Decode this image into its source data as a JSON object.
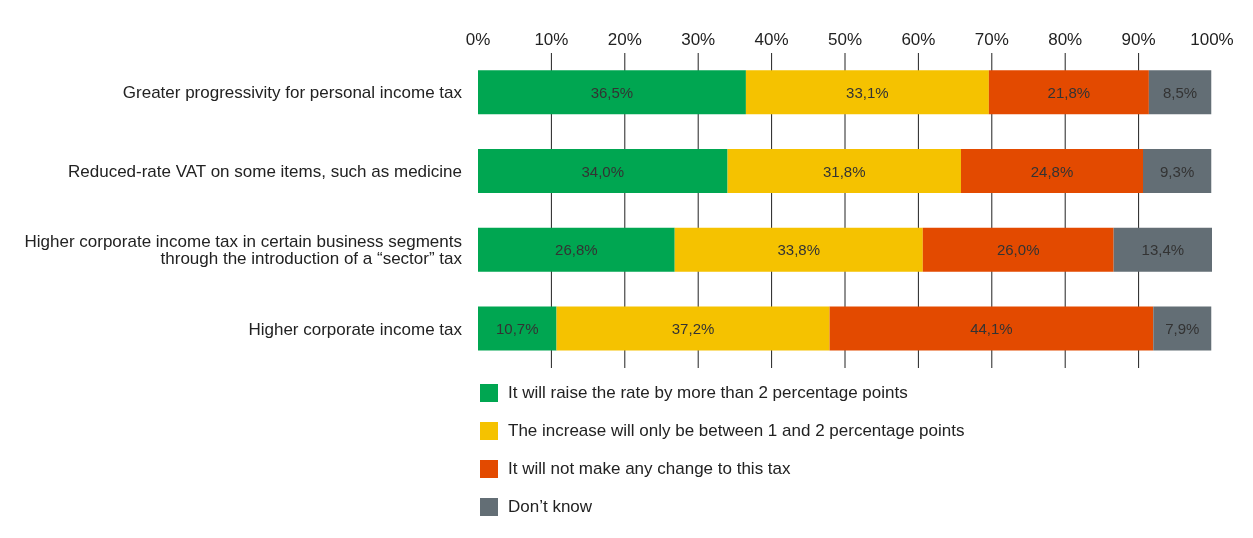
{
  "chart_data": {
    "type": "bar",
    "orientation": "horizontal",
    "stacked": true,
    "categories": [
      "Greater progressivity for personal income tax",
      "Reduced-rate VAT on some items, such as medicine",
      "Higher corporate income tax in certain business segments through the introduction of a “sector” tax",
      "Higher corporate income tax"
    ],
    "series": [
      {
        "name": "It will raise the rate by more than 2 percentage points",
        "color": "#00a651",
        "values": [
          36.5,
          34.0,
          26.8,
          10.7
        ],
        "value_labels": [
          "36,5%",
          "34,0%",
          "26,8%",
          "10,7%"
        ]
      },
      {
        "name": "The increase will only be between 1 and 2 percentage points",
        "color": "#f5c200",
        "values": [
          33.1,
          31.8,
          33.8,
          37.2
        ],
        "value_labels": [
          "33,1%",
          "31,8%",
          "33,8%",
          "37,2%"
        ]
      },
      {
        "name": "It will not make any change to this tax",
        "color": "#e34a00",
        "values": [
          21.8,
          24.8,
          26.0,
          44.1
        ],
        "value_labels": [
          "21,8%",
          "24,8%",
          "26,0%",
          "44,1%"
        ]
      },
      {
        "name": "Don’t know",
        "color": "#636e75",
        "values": [
          8.5,
          9.3,
          13.4,
          7.9
        ],
        "value_labels": [
          "8,5%",
          "9,3%",
          "13,4%",
          "7,9%"
        ]
      }
    ],
    "xlim": [
      0,
      100
    ],
    "xticks": [
      {
        "value": 0,
        "label": "0%"
      },
      {
        "value": 10,
        "label": "10%"
      },
      {
        "value": 20,
        "label": "20%"
      },
      {
        "value": 30,
        "label": "30%"
      },
      {
        "value": 40,
        "label": "40%"
      },
      {
        "value": 50,
        "label": "50%"
      },
      {
        "value": 60,
        "label": "60%"
      },
      {
        "value": 70,
        "label": "70%"
      },
      {
        "value": 80,
        "label": "80%"
      },
      {
        "value": 90,
        "label": "90%"
      },
      {
        "value": 100,
        "label": "100%"
      }
    ],
    "grid": "x",
    "legend": "bottom"
  }
}
